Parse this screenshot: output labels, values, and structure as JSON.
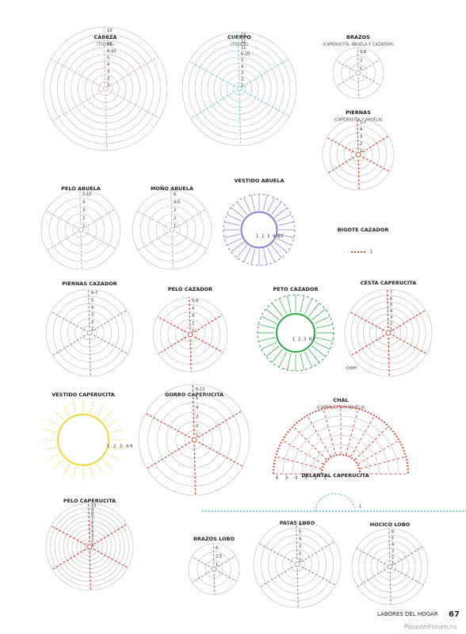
{
  "diagrams": [
    {
      "title": "CABEZA",
      "subtitle": "(TODOS)",
      "labels": [
        "13",
        "12",
        "11",
        "6-10",
        "5",
        "4",
        "3",
        "2",
        "1"
      ]
    },
    {
      "title": "CUERPO",
      "subtitle": "(TODOS)",
      "labels": [
        "13",
        "12",
        "11",
        "6-10",
        "5",
        "4",
        "3",
        "2",
        "1"
      ]
    },
    {
      "title": "BRAZOS",
      "subtitle": "(CAPERUCITA, ABUELA Y CAZADOR)",
      "labels": [
        "3-6",
        "2",
        "1"
      ]
    },
    {
      "title": "PIERNAS",
      "subtitle": "(CAPERUCITA Y ABUELA)",
      "labels": [
        "5-7",
        "4",
        "3",
        "2",
        "1"
      ]
    },
    {
      "title": "PELO ABUELA",
      "labels": [
        "5-10",
        "4",
        "3",
        "2",
        "1"
      ]
    },
    {
      "title": "MOÑO ABUELA",
      "labels": [
        "6",
        "4-5",
        "3",
        "2",
        "1"
      ]
    },
    {
      "title": "VESTIDO ABUELA",
      "labels": [
        "1",
        "2",
        "3",
        "4-9",
        "10"
      ]
    },
    {
      "title": "BIGOTE CAZADOR",
      "labels": [
        "1"
      ]
    },
    {
      "title": "PIERNAS CAZADOR",
      "labels": [
        "6-7",
        "5",
        "4",
        "3",
        "2",
        "1"
      ]
    },
    {
      "title": "PELO CAZADOR",
      "labels": [
        "5-9",
        "4",
        "3",
        "2",
        "1"
      ]
    },
    {
      "title": "PETO CAZADOR",
      "labels": [
        "1",
        "2",
        "3",
        "6-7"
      ]
    },
    {
      "title": "CESTA CAPERUCITA",
      "labels": [
        "7",
        "6",
        "5",
        "4",
        "3",
        "2",
        "1",
        "coser"
      ]
    },
    {
      "title": "VESTIDO CAPERUCITA",
      "labels": [
        "1",
        "2",
        "3",
        "4-9"
      ]
    },
    {
      "title": "GORRO CAPERUCITA",
      "labels": [
        "6-12",
        "5",
        "4",
        "3",
        "2",
        "1"
      ]
    },
    {
      "title": "CHAL",
      "subtitle": "(CAPERUCITA Y ABUELA)",
      "labels": [
        "1",
        "2",
        "3",
        "4",
        "5",
        "6"
      ]
    },
    {
      "title": "DELANTAL CAPERUCITA",
      "labels": [
        "1"
      ]
    },
    {
      "title": "PELO CAPERUCITA",
      "labels": [
        "10",
        "9",
        "8",
        "7",
        "6",
        "5",
        "4",
        "3",
        "2",
        "1"
      ]
    },
    {
      "title": "BRAZOS LOBO",
      "labels": [
        "6",
        "2-5",
        "1"
      ]
    },
    {
      "title": "PATAS LOBO",
      "labels": [
        "6-7",
        "5",
        "4",
        "3",
        "2",
        "1"
      ]
    },
    {
      "title": "HOCICO LOBO",
      "labels": [
        "6",
        "5",
        "4",
        "3",
        "2",
        "1"
      ]
    }
  ],
  "footer": {
    "magazine": "LABORES DEL HOGAR",
    "page": "67",
    "watermark": "PassionForum.ru"
  }
}
